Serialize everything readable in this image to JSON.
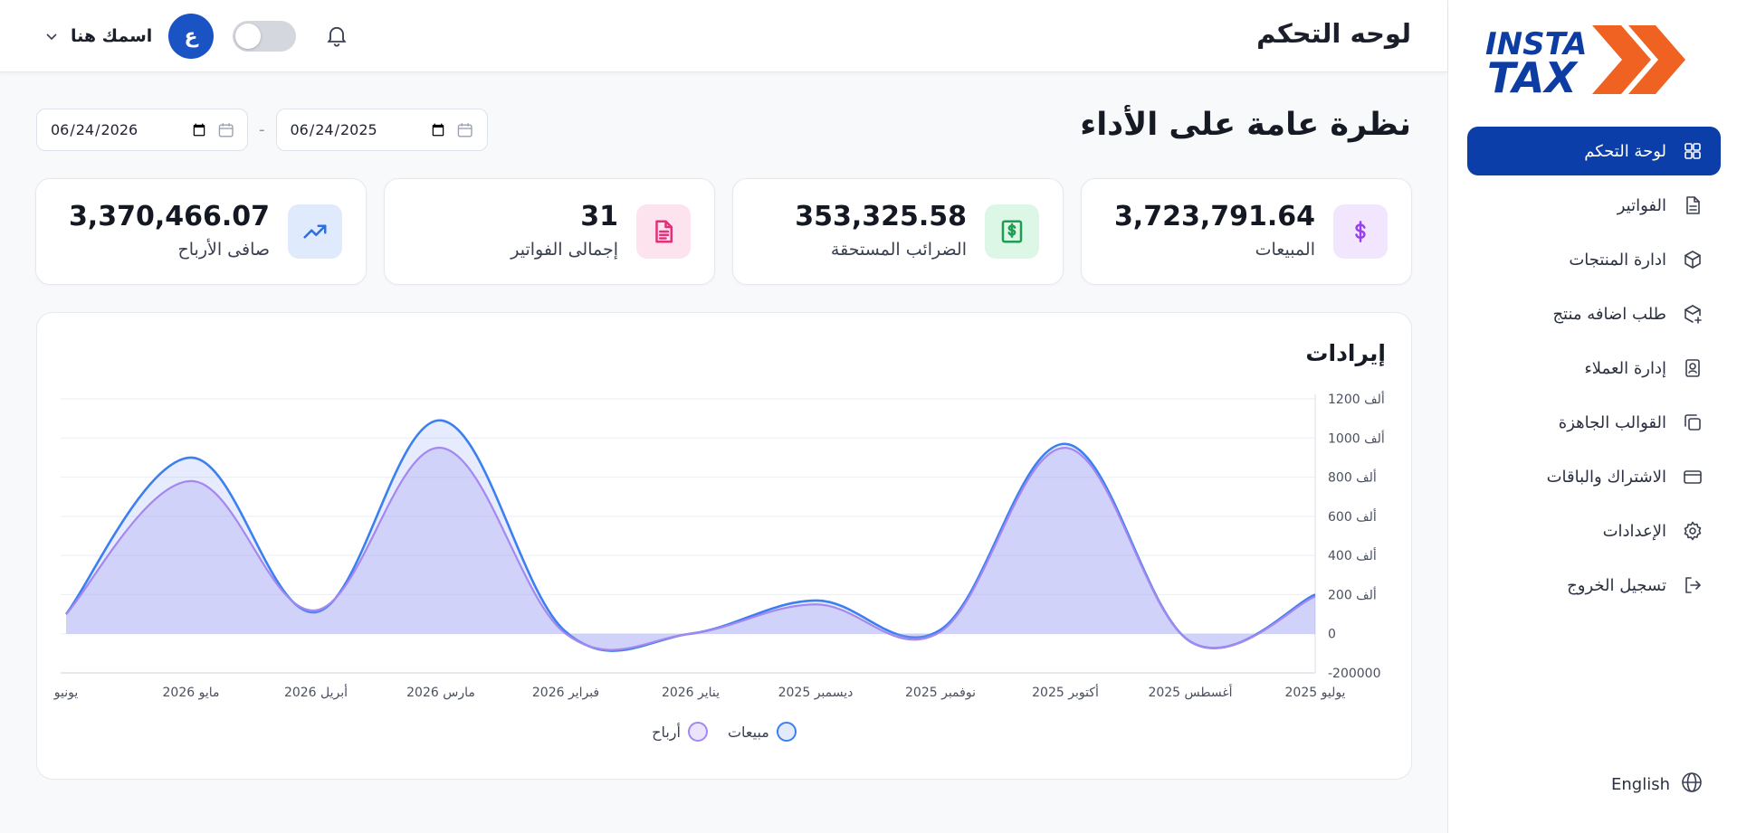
{
  "app": {
    "logo_text": [
      "INSTA",
      "TAX"
    ],
    "logo_alt": "INSTA TAX"
  },
  "topbar": {
    "title": "لوحه التحكم",
    "user_name": "اسمك هنا",
    "avatar_initial": "ع"
  },
  "sidebar": {
    "items": [
      {
        "label": "لوحة التحكم",
        "icon": "grid-icon",
        "active": true
      },
      {
        "label": "الفواتير",
        "icon": "file-icon"
      },
      {
        "label": "ادارة المنتجات",
        "icon": "box-icon"
      },
      {
        "label": "طلب اضافه منتج",
        "icon": "box-plus-icon"
      },
      {
        "label": "إدارة العملاء",
        "icon": "contact-icon"
      },
      {
        "label": "القوالب الجاهزة",
        "icon": "copy-icon"
      },
      {
        "label": "الاشتراك والباقات",
        "icon": "card-icon"
      },
      {
        "label": "الإعدادات",
        "icon": "gear-icon"
      },
      {
        "label": "تسجيل الخروج",
        "icon": "logout-icon"
      }
    ],
    "language": "English"
  },
  "main": {
    "heading": "نظرة عامة على الأداء",
    "date_from": "2025-06-24",
    "date_to": "2026-06-24",
    "cards": [
      {
        "label": "المبيعات",
        "value": "3,723,791.64",
        "icon": "dollar-icon",
        "bg": "#f1e6fd",
        "color": "#9b3df0"
      },
      {
        "label": "الضرائب المستحقة",
        "value": "353,325.58",
        "icon": "receipt-icon",
        "bg": "#dcf7e6",
        "color": "#1f9d52"
      },
      {
        "label": "إجمالى الفواتير",
        "value": "31",
        "icon": "document-icon",
        "bg": "#fde3ee",
        "color": "#e0327a"
      },
      {
        "label": "صافى الأرباح",
        "value": "3,370,466.07",
        "icon": "trend-up-icon",
        "bg": "#dfeafd",
        "color": "#2c6ee8"
      }
    ]
  },
  "chart_data": {
    "type": "area",
    "title": "إيرادات",
    "x": [
      "يوليو 2025",
      "أغسطس 2025",
      "أكتوبر 2025",
      "نوفمبر 2025",
      "ديسمبر 2025",
      "يناير 2026",
      "فبراير 2026",
      "مارس 2026",
      "أبريل 2026",
      "مايو 2026",
      "يونيو"
    ],
    "y_ticks": [
      "1200 ألف",
      "1000 ألف",
      "800 ألف",
      "600 ألف",
      "400 ألف",
      "200 ألف",
      "0",
      "-200000"
    ],
    "ylim": [
      -200000,
      1200000
    ],
    "series": [
      {
        "name": "مبيعات",
        "color": "#3b7ff0",
        "values": [
          200000,
          -40000,
          970000,
          20000,
          170000,
          0,
          10000,
          1090000,
          110000,
          900000,
          100000
        ]
      },
      {
        "name": "أرباح",
        "color": "#a488f0",
        "values": [
          190000,
          -40000,
          950000,
          10000,
          150000,
          0,
          0,
          950000,
          120000,
          780000,
          100000
        ]
      }
    ],
    "grid": true,
    "legend": "bottom-center"
  }
}
